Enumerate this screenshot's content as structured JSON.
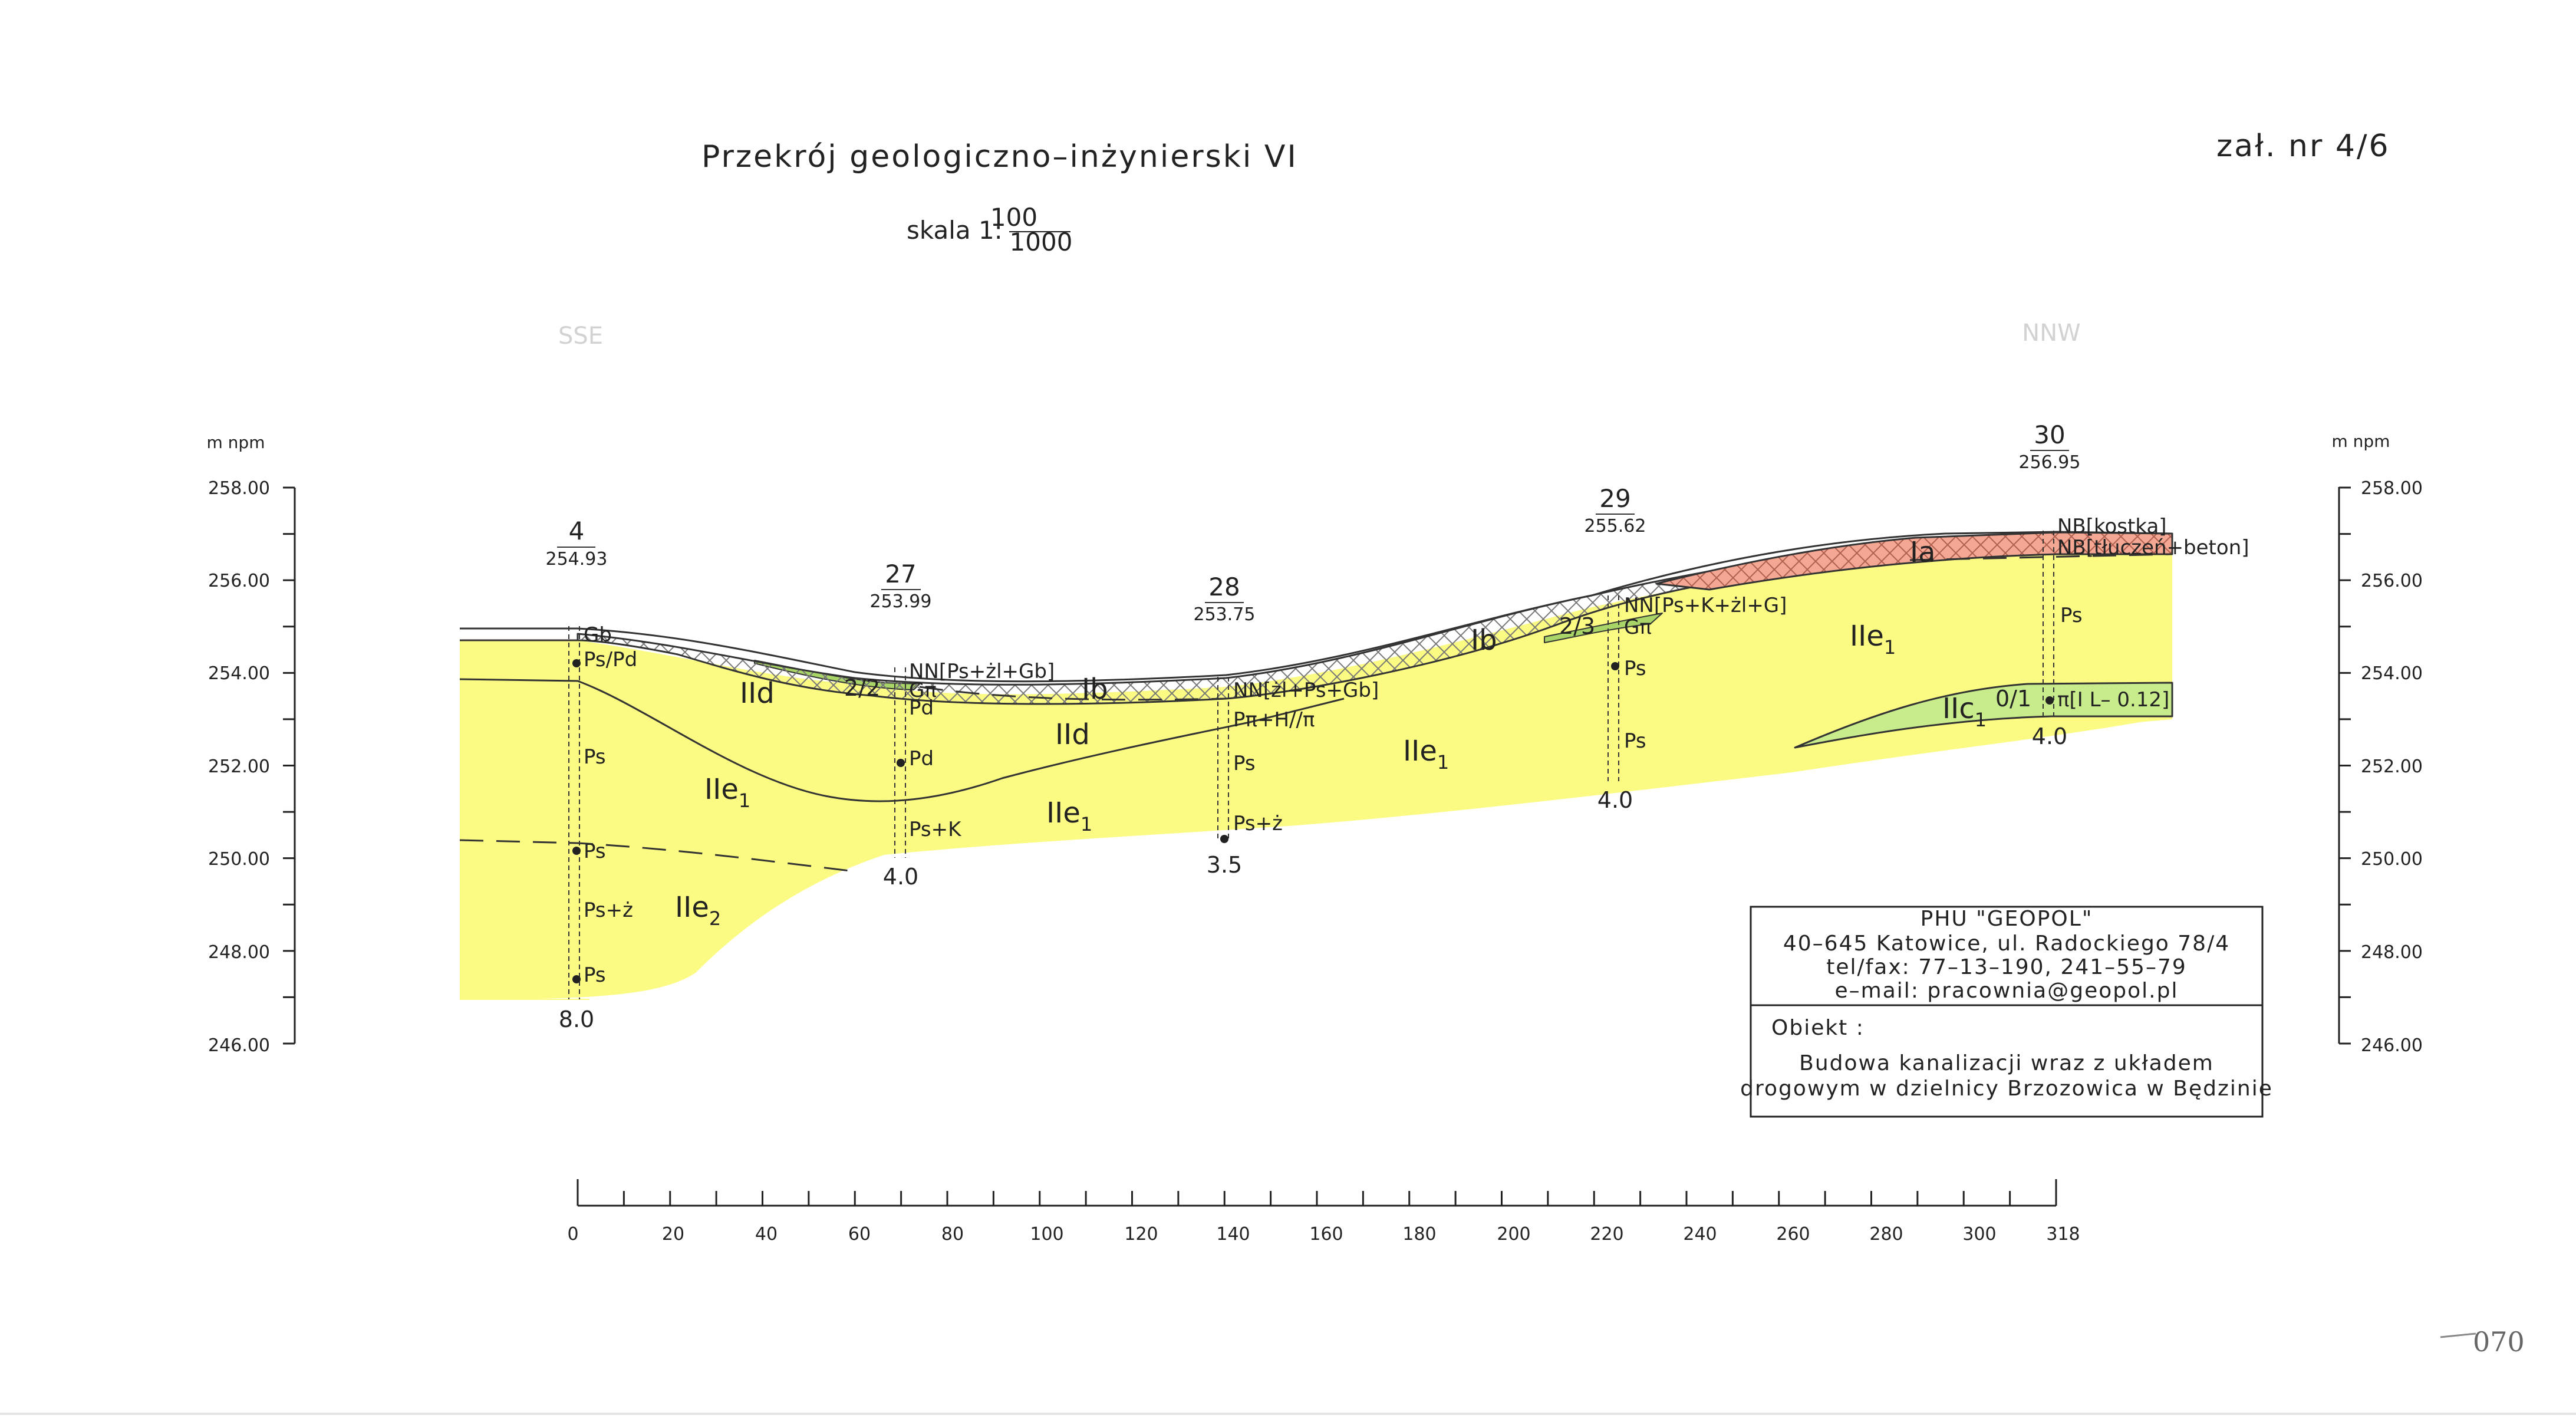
{
  "header": {
    "title": "Przekrój geologiczno–inżynierski VI",
    "attachment": "zał. nr 4/6",
    "scale_prefix": "skala 1:",
    "scale_numerator": "100",
    "scale_denominator": "1000"
  },
  "directions": {
    "left": "SSE",
    "right": "NNW"
  },
  "axis": {
    "unit_left": "m npm",
    "unit_right": "m npm",
    "elevation_labels": [
      "258.00",
      "256.00",
      "254.00",
      "252.00",
      "250.00",
      "248.00",
      "246.00"
    ],
    "distance_labels": [
      "0",
      "20",
      "40",
      "60",
      "80",
      "100",
      "120",
      "140",
      "160",
      "180",
      "200",
      "220",
      "240",
      "260",
      "280",
      "300",
      "318"
    ]
  },
  "boreholes": [
    {
      "number": "4",
      "elevation": "254.93",
      "depth": "8.0"
    },
    {
      "number": "27",
      "elevation": "253.99",
      "depth": "4.0"
    },
    {
      "number": "28",
      "elevation": "253.75",
      "depth": "3.5"
    },
    {
      "number": "29",
      "elevation": "255.62",
      "depth": "4.0"
    },
    {
      "number": "30",
      "elevation": "256.95",
      "depth": "4.0"
    }
  ],
  "soil_labels": {
    "b4": [
      "Gb",
      "Ps/Pd",
      "Ps",
      "Ps",
      "Ps+ż",
      "Ps"
    ],
    "b27": [
      "NN[Ps+żl+Gb]",
      "Gπ",
      "Pd",
      "Pd",
      "Ps+K"
    ],
    "b28": [
      "NN[żl+Ps+Gb]",
      "Pπ+H//π",
      "Ps",
      "Ps+ż"
    ],
    "b29": [
      "NN[Ps+K+żl+G]",
      "Gπ",
      "Ps",
      "Ps"
    ],
    "b30": [
      "NB[kostka]",
      "NB[tłuczeń+beton]",
      "Ps",
      "π[I L– 0.12]"
    ]
  },
  "water_marks": [
    "2/2",
    "2/3",
    "0/1"
  ],
  "layers": {
    "Ia": "Ia",
    "Ib_1": "Ib",
    "Ib_2": "Ib",
    "IId": "IId",
    "IId_2": "IId",
    "IIe": "IIe",
    "IIe_sub1": "1",
    "IIe_sub2": "2",
    "IIc": "IIc",
    "IIc_sub1": "1"
  },
  "company_box": {
    "name": "PHU \"GEOPOL\"",
    "address": "40–645 Katowice, ul. Radockiego 78/4",
    "phone": "tel/fax: 77–13–190, 241–55–79",
    "email": "e–mail: pracownia@geopol.pl",
    "object_label": "Obiekt :",
    "object_line1": "Budowa kanalizacji wraz z układem",
    "object_line2": "drogowym w dzielnicy Brzozowica w Będzinie"
  },
  "stamp": "070",
  "colors": {
    "sand": "#fbfb84",
    "clay": "#c8ec8c",
    "fill_red": "#f4a894",
    "line": "#333333"
  }
}
